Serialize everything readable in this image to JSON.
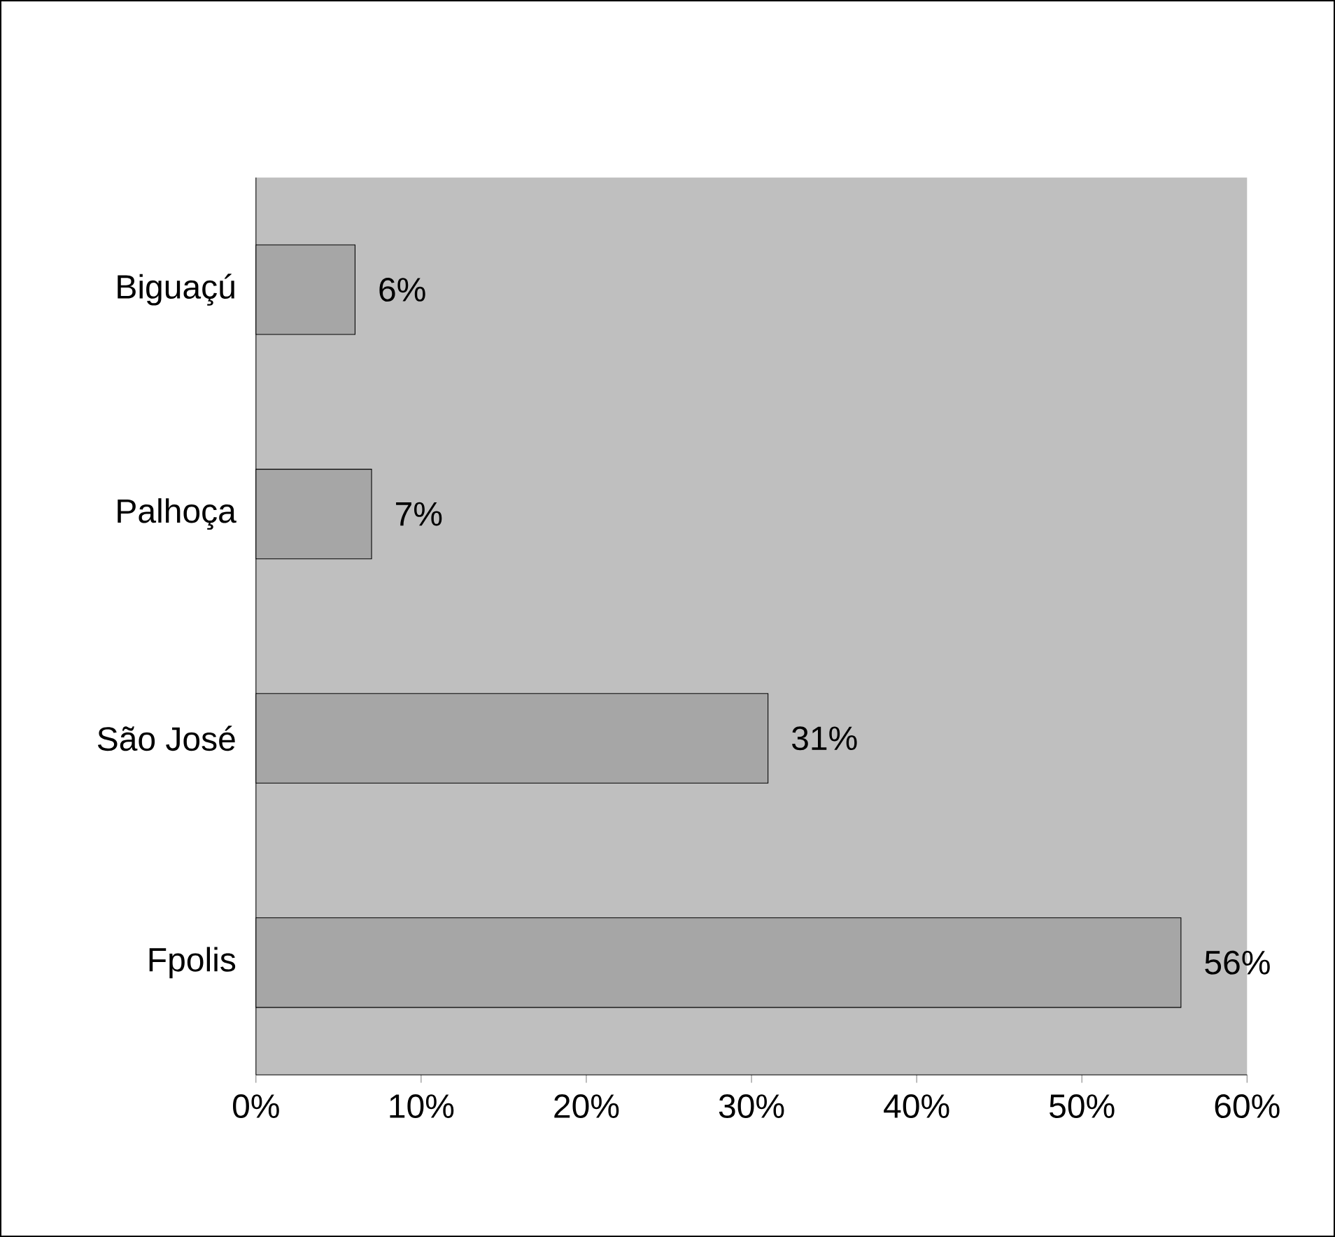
{
  "chart_data": {
    "type": "bar",
    "orientation": "horizontal",
    "categories": [
      "Biguaçú",
      "Palhoça",
      "São José",
      "Fpolis"
    ],
    "values": [
      6,
      7,
      31,
      56
    ],
    "value_labels": [
      "6%",
      "7%",
      "31%",
      "56%"
    ],
    "color": "#a6a6a6",
    "xlim": [
      0,
      60
    ],
    "xticks": [
      {
        "value": 0,
        "label": "0%"
      },
      {
        "value": 10,
        "label": "10%"
      },
      {
        "value": 20,
        "label": "20%"
      },
      {
        "value": 30,
        "label": "30%"
      },
      {
        "value": 40,
        "label": "40%"
      },
      {
        "value": 50,
        "label": "50%"
      },
      {
        "value": 60,
        "label": "60%"
      }
    ]
  }
}
